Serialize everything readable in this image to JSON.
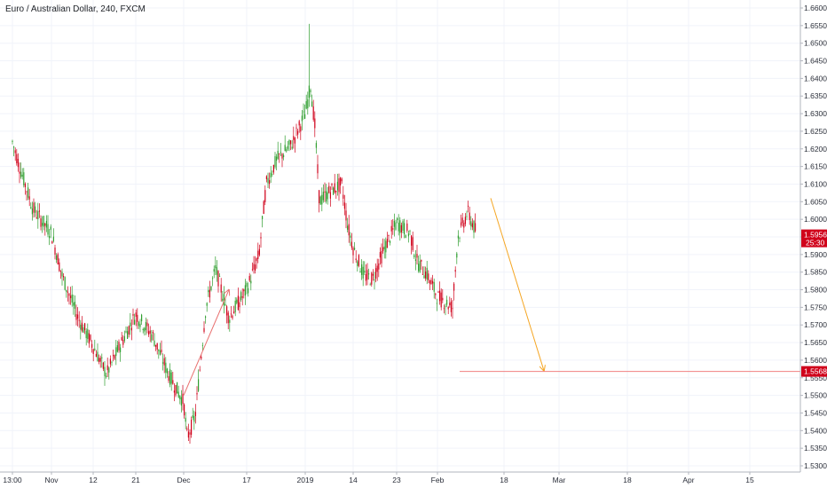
{
  "header": {
    "title": "Euro / Australian Dollar, 240, FXCM"
  },
  "colors": {
    "up": "#2f9e2f",
    "down": "#d0021b",
    "level_line": "#f08080",
    "projection_arrow": "#f5a623",
    "move_arrow": "#e8706f",
    "badge": "#d0021b"
  },
  "chart_data": {
    "type": "candlestick",
    "title": "Euro / Australian Dollar, 240, FXCM",
    "symbol": "Euro / Australian Dollar",
    "timeframe": "240",
    "source": "FXCM",
    "ylim": [
      1.53,
      1.66
    ],
    "y_ticks": [
      "1.6600",
      "1.6550",
      "1.6500",
      "1.6450",
      "1.6400",
      "1.6350",
      "1.6300",
      "1.6250",
      "1.6200",
      "1.6150",
      "1.6100",
      "1.6050",
      "1.6000",
      "1.5950",
      "1.5900",
      "1.5850",
      "1.5800",
      "1.5750",
      "1.5700",
      "1.5650",
      "1.5600",
      "1.5550",
      "1.5500",
      "1.5450",
      "1.5400",
      "1.5350",
      "1.5300"
    ],
    "x_ticks": [
      "13:00",
      "Nov",
      "12",
      "21",
      "Dec",
      "17",
      "2019",
      "14",
      "23",
      "Feb",
      "18",
      "Mar",
      "18",
      "Apr",
      "15"
    ],
    "price_path": [
      [
        "13:00",
        1.622
      ],
      [
        "Oct 29",
        1.615
      ],
      [
        "Oct 31",
        1.603
      ],
      [
        "Nov",
        1.596
      ],
      [
        "Nov 5",
        1.584
      ],
      [
        "Nov 8",
        1.572
      ],
      [
        "12",
        1.564
      ],
      [
        "Nov 15",
        1.556
      ],
      [
        "Nov 17",
        1.564
      ],
      [
        "21",
        1.573
      ],
      [
        "Nov 25",
        1.567
      ],
      [
        "Nov 28",
        1.556
      ],
      [
        "Dec",
        1.548
      ],
      [
        "Dec 2",
        1.538
      ],
      [
        "Dec 5",
        1.544
      ],
      [
        "Dec 8",
        1.575
      ],
      [
        "Dec 10",
        1.586
      ],
      [
        "Dec 12",
        1.572
      ],
      [
        "17",
        1.58
      ],
      [
        "Dec 21",
        1.59
      ],
      [
        "Dec 23",
        1.61
      ],
      [
        "Dec 26",
        1.617
      ],
      [
        "Dec 28",
        1.621
      ],
      [
        "2019",
        1.63
      ],
      [
        "Jan 2",
        1.638
      ],
      [
        "Jan 3",
        1.626
      ],
      [
        "Jan 5",
        1.605
      ],
      [
        "Jan 8",
        1.608
      ],
      [
        "Jan 10",
        1.61
      ],
      [
        "Jan 12",
        1.598
      ],
      [
        "14",
        1.592
      ],
      [
        "Jan 17",
        1.584
      ],
      [
        "Jan 19",
        1.583
      ],
      [
        "Jan 21",
        1.591
      ],
      [
        "23",
        1.599
      ],
      [
        "Jan 25",
        1.596
      ],
      [
        "Jan 27",
        1.588
      ],
      [
        "Jan 29",
        1.584
      ],
      [
        "Feb",
        1.578
      ],
      [
        "Feb 2",
        1.575
      ],
      [
        "Feb 4",
        1.595
      ],
      [
        "Feb 6",
        1.602
      ],
      [
        "Feb 8",
        1.596
      ]
    ],
    "spike_high": {
      "x": "2019",
      "value": 1.6555
    },
    "last_price": {
      "value": "1.5956",
      "countdown": "25:30"
    },
    "target_level": {
      "value": "1.5568"
    },
    "annotations": [
      {
        "type": "arrow",
        "from": [
          "Dec",
          1.55
        ],
        "to": [
          "Dec 12",
          1.58
        ]
      },
      {
        "type": "arrow",
        "from": [
          "Feb 12",
          1.606
        ],
        "to": [
          "Feb 27",
          1.557
        ]
      },
      {
        "type": "hline",
        "value": 1.5568,
        "from": "Feb 3"
      }
    ]
  }
}
